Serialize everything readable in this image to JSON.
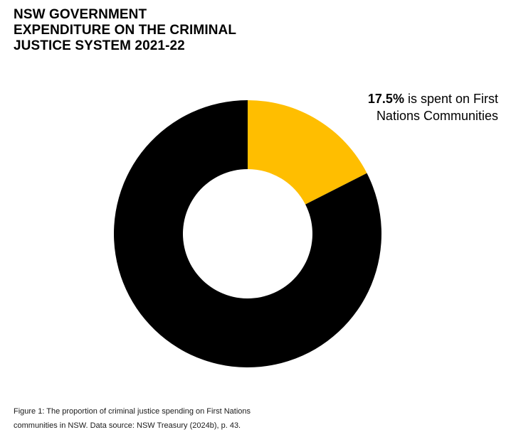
{
  "title_lines": [
    "NSW GOVERNMENT",
    "EXPENDITURE ON THE CRIMINAL",
    "JUSTICE SYSTEM 2021-22"
  ],
  "annotation": {
    "value": "17.5%",
    "text_line1": " is spent on First",
    "text_line2": "Nations Communities"
  },
  "caption_lines": [
    "Figure 1: The proportion of criminal justice spending on First Nations",
    "communities in NSW. Data source: NSW Treasury (2024b), p. 43."
  ],
  "chart_data": {
    "type": "pie",
    "donut": true,
    "title": "NSW GOVERNMENT EXPENDITURE ON THE CRIMINAL JUSTICE SYSTEM 2021-22",
    "slices": [
      {
        "label": "First Nations Communities",
        "value": 17.5,
        "color": "#FFBE00"
      },
      {
        "label": "",
        "value": 82.5,
        "color": "#000000"
      }
    ]
  }
}
